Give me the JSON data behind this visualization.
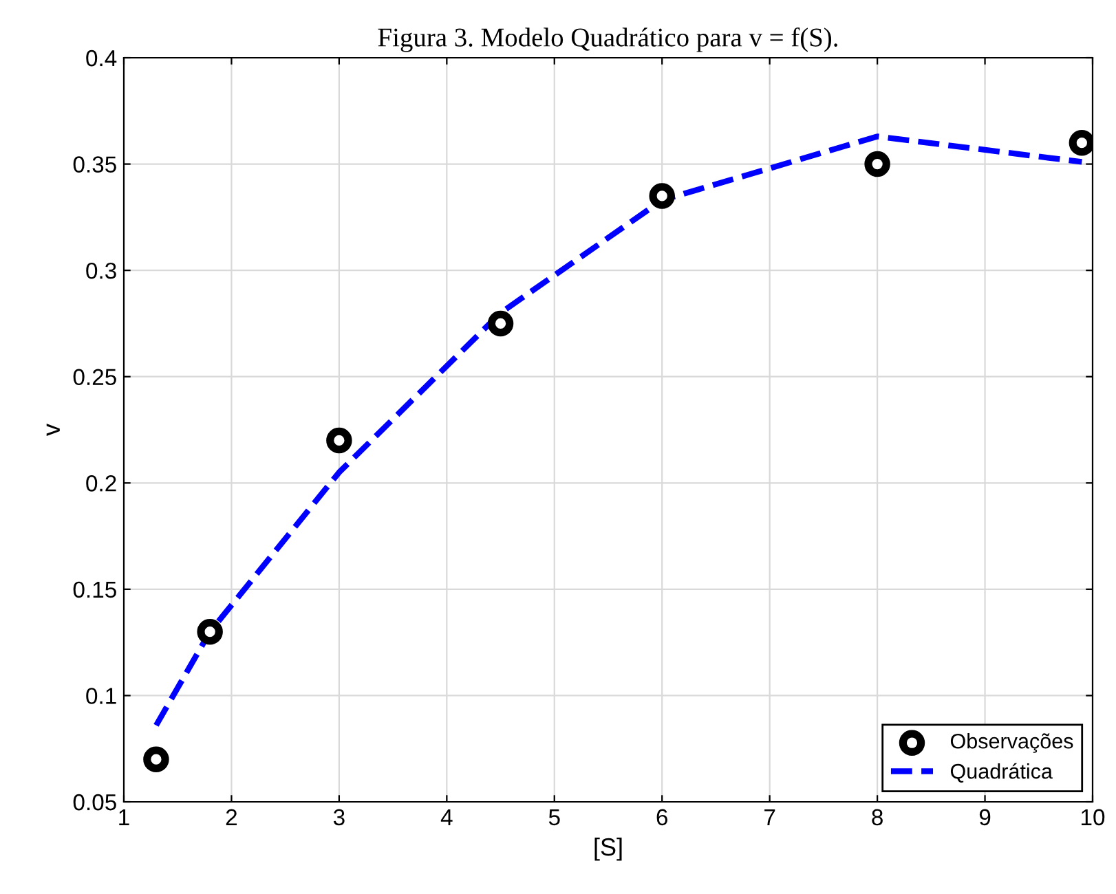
{
  "chart_data": {
    "type": "scatter",
    "title": "Figura 3. Modelo Quadrático para v = f(S).",
    "xlabel": "[S]",
    "ylabel": "v",
    "series": [
      {
        "name": "Observações",
        "color": "#000000",
        "marker": "circle",
        "x": [
          1.3,
          1.8,
          3,
          4.5,
          6,
          8,
          9.9
        ],
        "values": [
          0.07,
          0.13,
          0.22,
          0.275,
          0.335,
          0.35,
          0.36
        ]
      },
      {
        "name": "Quadrática",
        "type": "line",
        "color": "#0000ff",
        "line_style": "dashed",
        "marker": "none",
        "x": [
          1.3,
          1.8,
          3,
          4.5,
          6,
          8,
          9.9
        ],
        "values": [
          0.086,
          0.13,
          0.205,
          0.28,
          0.333,
          0.363,
          0.351
        ]
      }
    ],
    "xlim": [
      1,
      10
    ],
    "xticks": [
      1,
      2,
      3,
      4,
      5,
      6,
      7,
      8,
      9,
      10
    ],
    "ylim": [
      0.05,
      0.4
    ],
    "yticks": [
      0.05,
      0.1,
      0.15,
      0.2,
      0.25,
      0.3,
      0.35,
      0.4
    ],
    "grid": true,
    "legend": "bottom right"
  }
}
